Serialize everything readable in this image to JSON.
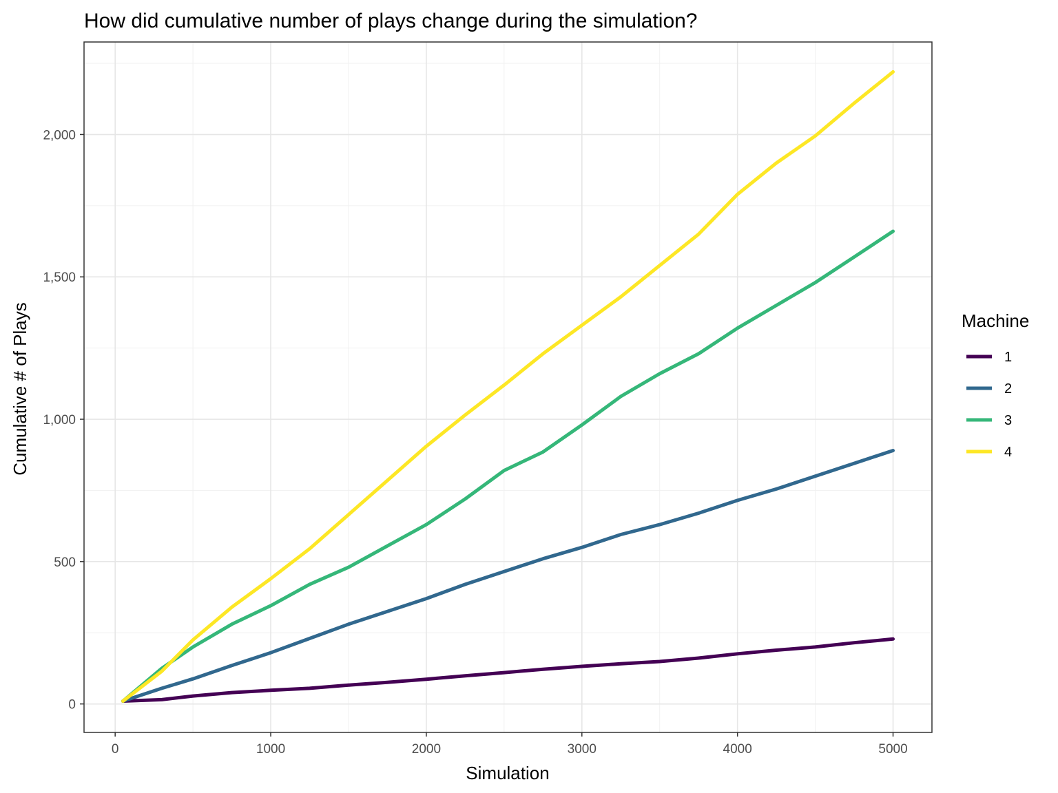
{
  "chart_data": {
    "type": "line",
    "title": "How did cumulative number of plays change during the simulation?",
    "xlabel": "Simulation",
    "ylabel": "Cumulative # of Plays",
    "xlim": [
      -200,
      5250
    ],
    "ylim": [
      -100,
      2325
    ],
    "x_ticks": [
      0,
      1000,
      2000,
      3000,
      4000,
      5000
    ],
    "x_tick_labels": [
      "0",
      "1000",
      "2000",
      "3000",
      "4000",
      "5000"
    ],
    "y_ticks": [
      0,
      500,
      1000,
      1500,
      2000
    ],
    "y_tick_labels": [
      "0",
      "500",
      "1,000",
      "1,500",
      "2,000"
    ],
    "grid": true,
    "legend": {
      "title": "Machine",
      "placement": "right"
    },
    "x": [
      50,
      300,
      500,
      750,
      1000,
      1250,
      1500,
      1750,
      2000,
      2250,
      2500,
      2750,
      3000,
      3250,
      3500,
      3750,
      4000,
      4250,
      4500,
      4750,
      5000
    ],
    "series": [
      {
        "name": "1",
        "color": "#440154",
        "values": [
          10,
          15,
          28,
          40,
          48,
          55,
          66,
          76,
          87,
          99,
          110,
          122,
          132,
          141,
          149,
          161,
          176,
          189,
          200,
          215,
          228
        ]
      },
      {
        "name": "2",
        "color": "#31688E",
        "values": [
          10,
          55,
          88,
          135,
          180,
          230,
          280,
          325,
          370,
          420,
          465,
          510,
          550,
          595,
          630,
          670,
          715,
          755,
          800,
          845,
          890
        ]
      },
      {
        "name": "3",
        "color": "#35B779",
        "values": [
          10,
          125,
          200,
          280,
          345,
          420,
          480,
          555,
          630,
          720,
          820,
          885,
          980,
          1080,
          1160,
          1230,
          1320,
          1400,
          1480,
          1570,
          1660
        ]
      },
      {
        "name": "4",
        "color": "#FDE725",
        "values": [
          10,
          115,
          225,
          340,
          440,
          545,
          665,
          785,
          905,
          1015,
          1120,
          1230,
          1330,
          1430,
          1540,
          1650,
          1790,
          1900,
          1995,
          2110,
          2220
        ]
      }
    ]
  }
}
